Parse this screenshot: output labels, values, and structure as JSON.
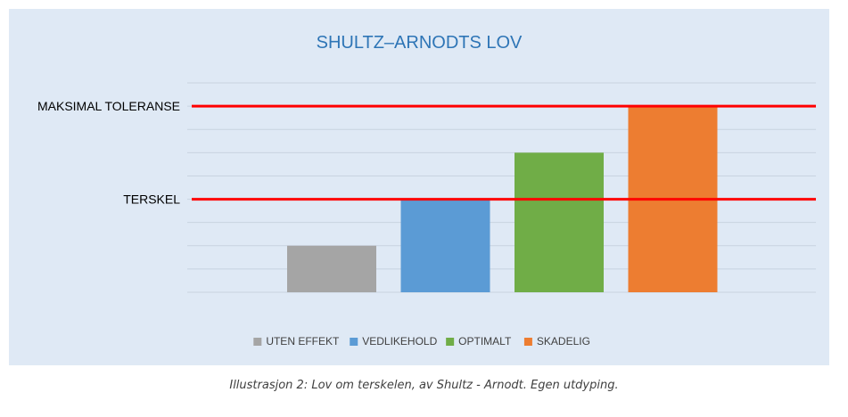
{
  "chart_data": {
    "type": "bar",
    "title": "SHULTZ–ARNODTS LOV",
    "xlabel": "",
    "ylabel": "",
    "ylim": [
      0,
      8
    ],
    "grid": true,
    "legend_position": "bottom",
    "series": [
      {
        "name": "UTEN EFFEKT",
        "values": [
          2
        ],
        "color": "#a5a5a5"
      },
      {
        "name": "VEDLIKEHOLD",
        "values": [
          4
        ],
        "color": "#5b9bd5"
      },
      {
        "name": "OPTIMALT",
        "values": [
          6
        ],
        "color": "#70ad47"
      },
      {
        "name": "SKADELIG",
        "values": [
          8
        ],
        "color": "#ed7d31"
      }
    ],
    "reference_lines": [
      {
        "label": "MAKSIMAL TOLERANSE",
        "value": 8,
        "color": "#ff0000"
      },
      {
        "label": "TERSKEL",
        "value": 4,
        "color": "#ff0000"
      }
    ]
  },
  "caption": "Illustrasjon 2: Lov om terskelen, av Shultz - Arnodt. Egen utdyping.",
  "colors": {
    "background": "#dfe9f5",
    "gridline": "#c8d3e0",
    "title": "#2e75b6"
  }
}
